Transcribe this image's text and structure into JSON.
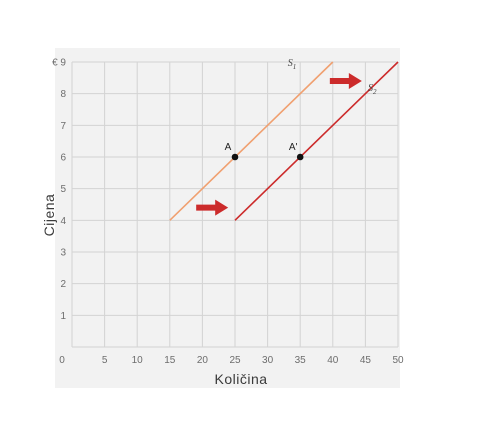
{
  "chart_data": {
    "type": "line",
    "xlabel": "Količina",
    "ylabel": "Cijena",
    "y_currency_symbol": "€",
    "xlim": [
      0,
      50
    ],
    "ylim": [
      0,
      9
    ],
    "xticks": [
      0,
      5,
      10,
      15,
      20,
      25,
      30,
      35,
      40,
      45,
      50
    ],
    "yticks": [
      1,
      2,
      3,
      4,
      5,
      6,
      7,
      8,
      9
    ],
    "grid": true,
    "series": [
      {
        "name": "S",
        "subscript": "1",
        "color": "#f0a070",
        "x": [
          15,
          40
        ],
        "y": [
          4,
          9
        ]
      },
      {
        "name": "S",
        "subscript": "2",
        "color": "#cc2b2b",
        "x": [
          25,
          50
        ],
        "y": [
          4,
          9
        ]
      }
    ],
    "points": [
      {
        "label": "A",
        "x": 25,
        "y": 6
      },
      {
        "label": "A'",
        "x": 35,
        "y": 6
      }
    ],
    "arrows": [
      {
        "direction": "right",
        "x": 21.5,
        "y": 4.4,
        "color": "#cc2b2b"
      },
      {
        "direction": "right",
        "x": 42,
        "y": 8.4,
        "color": "#cc2b2b"
      }
    ],
    "panel_color": "#f2f2f2",
    "grid_color": "#d3d3d3"
  }
}
